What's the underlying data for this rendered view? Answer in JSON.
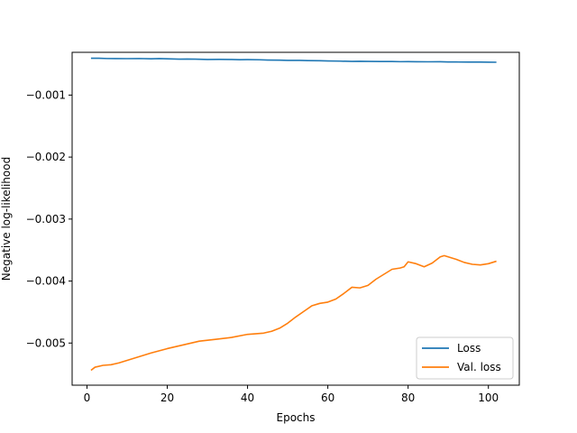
{
  "chart_data": {
    "type": "line",
    "title": "",
    "xlabel": "Epochs",
    "ylabel": "Negative log-likelihood",
    "xlim": [
      -3.7,
      107.7
    ],
    "ylim": [
      -0.00568,
      -0.00031
    ],
    "xticks": [
      0,
      20,
      40,
      60,
      80,
      100
    ],
    "yticks": [
      -0.005,
      -0.004,
      -0.003,
      -0.002,
      -0.001
    ],
    "xtick_labels": [
      "0",
      "20",
      "40",
      "60",
      "80",
      "100"
    ],
    "ytick_labels": [
      "−0.005",
      "−0.004",
      "−0.003",
      "−0.002",
      "−0.001"
    ],
    "grid": false,
    "legend_position": "lower-right",
    "series": [
      {
        "name": "Loss",
        "color": "#1f77b4",
        "x": [
          1,
          3,
          5,
          10,
          13,
          16,
          18,
          21,
          23,
          25,
          27,
          30,
          33,
          36,
          38,
          40,
          43,
          45,
          48,
          50,
          53,
          55,
          58,
          60,
          63,
          66,
          68,
          70,
          73,
          76,
          78,
          80,
          82,
          85,
          88,
          90,
          92,
          95,
          98,
          100,
          102
        ],
        "y": [
          -0.000406,
          -0.000405,
          -0.00041,
          -0.000412,
          -0.00041,
          -0.000414,
          -0.000411,
          -0.000416,
          -0.00042,
          -0.000418,
          -0.00042,
          -0.000425,
          -0.000424,
          -0.000426,
          -0.000429,
          -0.000428,
          -0.00043,
          -0.000434,
          -0.000436,
          -0.00044,
          -0.00044,
          -0.000443,
          -0.000445,
          -0.000449,
          -0.000452,
          -0.000457,
          -0.000455,
          -0.000456,
          -0.000458,
          -0.000458,
          -0.000461,
          -0.00046,
          -0.000462,
          -0.000463,
          -0.000462,
          -0.000465,
          -0.000466,
          -0.000468,
          -0.000468,
          -0.000469,
          -0.00047
        ]
      },
      {
        "name": "Val. loss",
        "color": "#ff7f0e",
        "x": [
          1,
          2,
          4,
          6,
          8,
          12,
          16,
          20,
          24,
          28,
          32,
          36,
          40,
          44,
          46,
          48,
          50,
          52,
          54,
          56,
          58,
          60,
          62,
          64,
          65,
          66,
          68,
          70,
          72,
          74,
          76,
          78,
          79,
          80,
          82,
          84,
          86,
          88,
          89,
          90,
          92,
          94,
          96,
          98,
          100,
          102
        ],
        "y": [
          -0.00544,
          -0.00539,
          -0.00536,
          -0.00535,
          -0.00532,
          -0.00524,
          -0.00516,
          -0.00509,
          -0.00503,
          -0.00497,
          -0.00494,
          -0.00491,
          -0.00486,
          -0.00484,
          -0.00481,
          -0.00476,
          -0.00468,
          -0.00458,
          -0.00449,
          -0.0044,
          -0.00436,
          -0.00434,
          -0.00429,
          -0.0042,
          -0.00415,
          -0.0041,
          -0.00411,
          -0.00407,
          -0.00397,
          -0.00389,
          -0.00381,
          -0.00379,
          -0.00377,
          -0.00369,
          -0.00372,
          -0.00377,
          -0.00371,
          -0.00361,
          -0.00359,
          -0.00361,
          -0.00365,
          -0.0037,
          -0.00373,
          -0.00374,
          -0.00372,
          -0.00368
        ]
      }
    ]
  }
}
